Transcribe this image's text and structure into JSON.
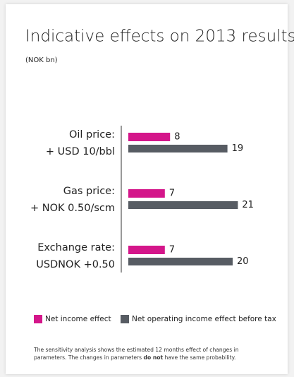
{
  "chart_data": {
    "type": "bar",
    "orientation": "horizontal",
    "title": "Indicative effects on 2013 results",
    "subtitle": "(NOK bn)",
    "categories": [
      [
        "Oil price:",
        "+ USD 10/bbl"
      ],
      [
        "Gas price:",
        "+ NOK 0.50/scm"
      ],
      [
        "Exchange rate:",
        "USDNOK +0.50"
      ]
    ],
    "series": [
      {
        "name": "Net income effect",
        "color": "#d4168a",
        "values": [
          8,
          7,
          7
        ]
      },
      {
        "name": "Net operating income effect before tax",
        "color": "#575c63",
        "values": [
          19,
          21,
          20
        ]
      }
    ],
    "legend": "bottom",
    "footnote": [
      "The sensitivity analysis shows the estimated 12 months effect of changes in parameters. The changes in parameters",
      "do not",
      "have the same probability."
    ]
  }
}
